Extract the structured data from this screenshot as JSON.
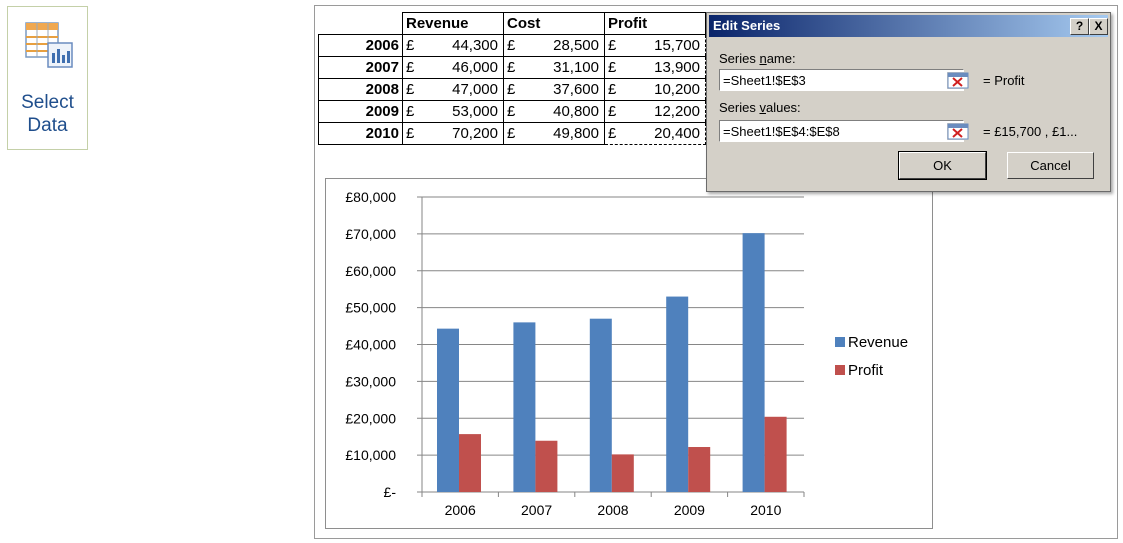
{
  "ribbon": {
    "select_data_line1": "Select",
    "select_data_line2": "Data"
  },
  "sheet": {
    "headers": [
      "Revenue",
      "Cost",
      "Profit"
    ],
    "currency": "£",
    "rows": [
      {
        "year": "2006",
        "revenue": "44,300",
        "cost": "28,500",
        "profit": "15,700"
      },
      {
        "year": "2007",
        "revenue": "46,000",
        "cost": "31,100",
        "profit": "13,900"
      },
      {
        "year": "2008",
        "revenue": "47,000",
        "cost": "37,600",
        "profit": "10,200"
      },
      {
        "year": "2009",
        "revenue": "53,000",
        "cost": "40,800",
        "profit": "12,200"
      },
      {
        "year": "2010",
        "revenue": "70,200",
        "cost": "49,800",
        "profit": "20,400"
      }
    ]
  },
  "dialog": {
    "title": "Edit Series",
    "help_btn": "?",
    "close_btn": "X",
    "series_name_label_pre": "Series ",
    "series_name_label_ul": "n",
    "series_name_label_post": "ame:",
    "series_name_value": "=Sheet1!$E$3",
    "series_name_preview": "= Profit",
    "series_values_label_pre": "Series ",
    "series_values_label_ul": "v",
    "series_values_label_post": "alues:",
    "series_values_value": "=Sheet1!$E$4:$E$8",
    "series_values_preview": "= £15,700 , £1...",
    "ok_label": "OK",
    "cancel_label": "Cancel"
  },
  "chart_data": {
    "type": "bar",
    "categories": [
      "2006",
      "2007",
      "2008",
      "2009",
      "2010"
    ],
    "series": [
      {
        "name": "Revenue",
        "values": [
          44300,
          46000,
          47000,
          53000,
          70200
        ],
        "color": "#4f81bd"
      },
      {
        "name": "Profit",
        "values": [
          15700,
          13900,
          10200,
          12200,
          20400
        ],
        "color": "#c0504d"
      }
    ],
    "ylim": [
      0,
      80000
    ],
    "yticks": [
      0,
      10000,
      20000,
      30000,
      40000,
      50000,
      60000,
      70000,
      80000
    ],
    "ytick_labels": [
      "£-",
      "£10,000",
      "£20,000",
      "£30,000",
      "£40,000",
      "£50,000",
      "£60,000",
      "£70,000",
      "£80,000"
    ],
    "grid": true,
    "legend_position": "right"
  }
}
